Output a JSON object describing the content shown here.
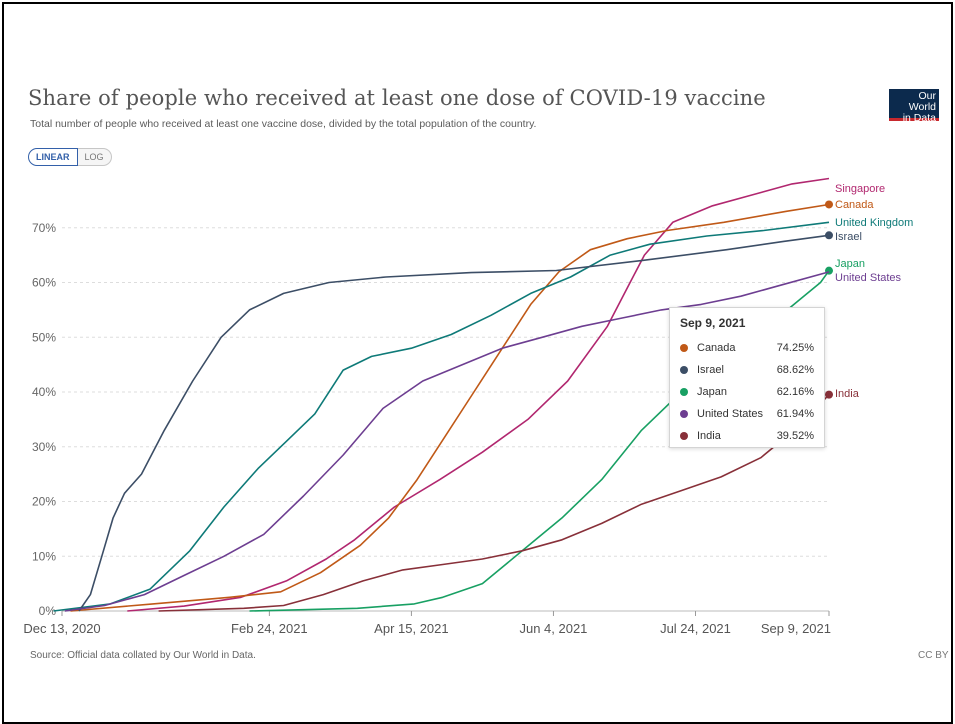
{
  "header": {
    "title": "Share of people who received at least one dose of COVID-19 vaccine",
    "subtitle": "Total number of people who received at least one vaccine dose, divided by the total population of the country.",
    "logo_line1": "Our World",
    "logo_line2": "in Data"
  },
  "scale_toggle": {
    "linear_label": "LINEAR",
    "log_label": "LOG",
    "selected": "LINEAR"
  },
  "footer": {
    "source": "Source: Official data collated by Our World in Data.",
    "license": "CC BY"
  },
  "tooltip": {
    "date": "Sep 9, 2021",
    "rows": [
      {
        "name": "Canada",
        "value": "74.25%",
        "color": "#c05917"
      },
      {
        "name": "Israel",
        "value": "68.62%",
        "color": "#3c4e66"
      },
      {
        "name": "Japan",
        "value": "62.16%",
        "color": "#18a063"
      },
      {
        "name": "United States",
        "value": "61.94%",
        "color": "#6d3e91"
      },
      {
        "name": "India",
        "value": "39.52%",
        "color": "#883039"
      }
    ]
  },
  "chart_data": {
    "type": "line",
    "title": "Share of people who received at least one dose of COVID-19 vaccine",
    "subtitle": "Total number of people who received at least one vaccine dose, divided by the total population of the country.",
    "xlabel": "",
    "ylabel": "",
    "x_axis": {
      "type": "date",
      "range": [
        "2020-12-13",
        "2021-09-09"
      ],
      "ticks": [
        {
          "date": "2020-12-13",
          "label": "Dec 13, 2020"
        },
        {
          "date": "2021-02-24",
          "label": "Feb 24, 2021"
        },
        {
          "date": "2021-04-15",
          "label": "Apr 15, 2021"
        },
        {
          "date": "2021-06-04",
          "label": "Jun 4, 2021"
        },
        {
          "date": "2021-07-24",
          "label": "Jul 24, 2021"
        },
        {
          "date": "2021-09-09",
          "label": "Sep 9, 2021"
        }
      ]
    },
    "y_axis": {
      "range": [
        0,
        80
      ],
      "unit": "%",
      "ticks": [
        {
          "value": 0,
          "label": "0%"
        },
        {
          "value": 10,
          "label": "10%"
        },
        {
          "value": 20,
          "label": "20%"
        },
        {
          "value": 30,
          "label": "30%"
        },
        {
          "value": 40,
          "label": "40%"
        },
        {
          "value": 50,
          "label": "50%"
        },
        {
          "value": 60,
          "label": "60%"
        },
        {
          "value": 70,
          "label": "70%"
        }
      ]
    },
    "grid": {
      "horizontal": true,
      "vertical": false
    },
    "legend": "end-of-line labels at right",
    "series": [
      {
        "name": "Singapore",
        "color": "#b1276f",
        "end_marker": false,
        "points": [
          [
            "2021-01-05",
            0
          ],
          [
            "2021-01-25",
            0.9
          ],
          [
            "2021-02-14",
            2.5
          ],
          [
            "2021-03-02",
            5.5
          ],
          [
            "2021-03-16",
            9.5
          ],
          [
            "2021-03-26",
            13
          ],
          [
            "2021-04-09",
            19
          ],
          [
            "2021-04-25",
            24
          ],
          [
            "2021-05-10",
            29
          ],
          [
            "2021-05-26",
            35
          ],
          [
            "2021-06-09",
            42
          ],
          [
            "2021-06-23",
            52
          ],
          [
            "2021-07-01",
            60
          ],
          [
            "2021-07-06",
            65
          ],
          [
            "2021-07-16",
            71
          ],
          [
            "2021-07-30",
            74
          ],
          [
            "2021-08-13",
            76
          ],
          [
            "2021-08-27",
            78
          ],
          [
            "2021-09-09",
            79
          ]
        ]
      },
      {
        "name": "Canada",
        "color": "#c05917",
        "end_marker": true,
        "points": [
          [
            "2020-12-16",
            0
          ],
          [
            "2021-01-14",
            1.3
          ],
          [
            "2021-02-10",
            2.5
          ],
          [
            "2021-02-28",
            3.5
          ],
          [
            "2021-03-14",
            7
          ],
          [
            "2021-03-28",
            12
          ],
          [
            "2021-04-07",
            17
          ],
          [
            "2021-04-17",
            24
          ],
          [
            "2021-04-27",
            32
          ],
          [
            "2021-05-07",
            40
          ],
          [
            "2021-05-17",
            48
          ],
          [
            "2021-05-27",
            56
          ],
          [
            "2021-06-06",
            62
          ],
          [
            "2021-06-17",
            66
          ],
          [
            "2021-06-30",
            68
          ],
          [
            "2021-07-14",
            69.5
          ],
          [
            "2021-08-03",
            71
          ],
          [
            "2021-08-25",
            73
          ],
          [
            "2021-09-09",
            74.25
          ]
        ]
      },
      {
        "name": "United Kingdom",
        "color": "#0e7a78",
        "end_marker": false,
        "points": [
          [
            "2020-12-10",
            0
          ],
          [
            "2020-12-30",
            1.3
          ],
          [
            "2021-01-13",
            4
          ],
          [
            "2021-01-27",
            11
          ],
          [
            "2021-02-08",
            19
          ],
          [
            "2021-02-20",
            26
          ],
          [
            "2021-03-02",
            31
          ],
          [
            "2021-03-12",
            36
          ],
          [
            "2021-03-22",
            44
          ],
          [
            "2021-04-01",
            46.5
          ],
          [
            "2021-04-15",
            48
          ],
          [
            "2021-04-29",
            50.5
          ],
          [
            "2021-05-13",
            54
          ],
          [
            "2021-05-27",
            58
          ],
          [
            "2021-06-10",
            61
          ],
          [
            "2021-06-24",
            65
          ],
          [
            "2021-07-08",
            67
          ],
          [
            "2021-07-28",
            68.5
          ],
          [
            "2021-08-17",
            69.5
          ],
          [
            "2021-09-09",
            71
          ]
        ]
      },
      {
        "name": "Israel",
        "color": "#3c4e66",
        "end_marker": true,
        "points": [
          [
            "2020-12-19",
            0
          ],
          [
            "2020-12-23",
            3
          ],
          [
            "2020-12-27",
            10
          ],
          [
            "2020-12-31",
            17
          ],
          [
            "2021-01-04",
            21.5
          ],
          [
            "2021-01-10",
            25
          ],
          [
            "2021-01-18",
            33
          ],
          [
            "2021-01-28",
            42
          ],
          [
            "2021-02-07",
            50
          ],
          [
            "2021-02-17",
            55
          ],
          [
            "2021-03-01",
            58
          ],
          [
            "2021-03-17",
            60
          ],
          [
            "2021-04-06",
            61
          ],
          [
            "2021-05-06",
            61.8
          ],
          [
            "2021-06-05",
            62.2
          ],
          [
            "2021-07-05",
            64
          ],
          [
            "2021-08-04",
            66
          ],
          [
            "2021-08-24",
            67.5
          ],
          [
            "2021-09-09",
            68.62
          ]
        ]
      },
      {
        "name": "Japan",
        "color": "#18a063",
        "end_marker": true,
        "points": [
          [
            "2021-02-17",
            0
          ],
          [
            "2021-03-27",
            0.5
          ],
          [
            "2021-04-16",
            1.3
          ],
          [
            "2021-04-26",
            2.5
          ],
          [
            "2021-05-10",
            5
          ],
          [
            "2021-05-24",
            11
          ],
          [
            "2021-06-07",
            17
          ],
          [
            "2021-06-21",
            24
          ],
          [
            "2021-07-05",
            33
          ],
          [
            "2021-07-19",
            40
          ],
          [
            "2021-08-02",
            46
          ],
          [
            "2021-08-16",
            51
          ],
          [
            "2021-08-30",
            57
          ],
          [
            "2021-09-06",
            60
          ],
          [
            "2021-09-09",
            62.16
          ]
        ]
      },
      {
        "name": "United States",
        "color": "#6d3e91",
        "end_marker": false,
        "points": [
          [
            "2020-12-14",
            0
          ],
          [
            "2020-12-28",
            1
          ],
          [
            "2021-01-11",
            3
          ],
          [
            "2021-01-25",
            6.5
          ],
          [
            "2021-02-08",
            10
          ],
          [
            "2021-02-22",
            14
          ],
          [
            "2021-03-08",
            21
          ],
          [
            "2021-03-22",
            28.5
          ],
          [
            "2021-04-05",
            37
          ],
          [
            "2021-04-19",
            42
          ],
          [
            "2021-05-03",
            45
          ],
          [
            "2021-05-17",
            48
          ],
          [
            "2021-05-31",
            50
          ],
          [
            "2021-06-14",
            52
          ],
          [
            "2021-06-28",
            53.5
          ],
          [
            "2021-07-12",
            55
          ],
          [
            "2021-07-26",
            56
          ],
          [
            "2021-08-09",
            57.5
          ],
          [
            "2021-08-23",
            59.5
          ],
          [
            "2021-09-09",
            61.94
          ]
        ]
      },
      {
        "name": "India",
        "color": "#883039",
        "end_marker": true,
        "points": [
          [
            "2021-01-16",
            0
          ],
          [
            "2021-02-15",
            0.5
          ],
          [
            "2021-03-01",
            1
          ],
          [
            "2021-03-15",
            3
          ],
          [
            "2021-03-29",
            5.5
          ],
          [
            "2021-04-12",
            7.5
          ],
          [
            "2021-04-26",
            8.5
          ],
          [
            "2021-05-10",
            9.5
          ],
          [
            "2021-05-24",
            11
          ],
          [
            "2021-06-07",
            13
          ],
          [
            "2021-06-21",
            16
          ],
          [
            "2021-07-05",
            19.5
          ],
          [
            "2021-07-19",
            22
          ],
          [
            "2021-08-02",
            24.5
          ],
          [
            "2021-08-16",
            28
          ],
          [
            "2021-08-30",
            34
          ],
          [
            "2021-09-09",
            39.52
          ]
        ]
      }
    ]
  }
}
